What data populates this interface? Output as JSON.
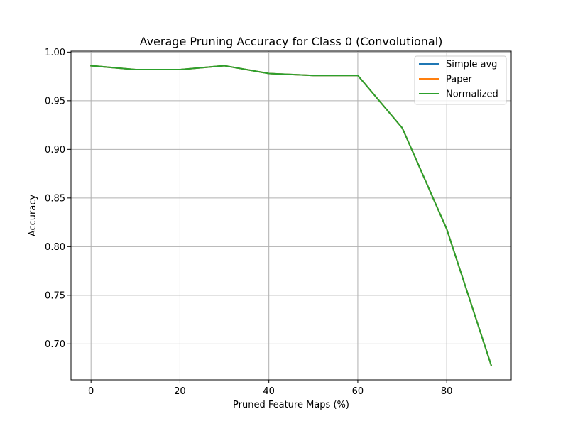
{
  "chart_data": {
    "type": "line",
    "title": "Average Pruning Accuracy for Class 0 (Convolutional)",
    "xlabel": "Pruned Feature Maps (%)",
    "ylabel": "Accuracy",
    "xlim": [
      -4.5,
      94.5
    ],
    "ylim": [
      0.663,
      1.001
    ],
    "xticks": [
      0,
      20,
      40,
      60,
      80
    ],
    "yticks": [
      0.7,
      0.75,
      0.8,
      0.85,
      0.9,
      0.95,
      1.0
    ],
    "xtick_labels": [
      "0",
      "20",
      "40",
      "60",
      "80"
    ],
    "ytick_labels": [
      "0.70",
      "0.75",
      "0.80",
      "0.85",
      "0.90",
      "0.95",
      "1.00"
    ],
    "grid": true,
    "legend_position": "top-right",
    "x": [
      0,
      10,
      20,
      30,
      40,
      50,
      60,
      70,
      80,
      90
    ],
    "series": [
      {
        "name": "Simple avg",
        "color": "#1f77b4",
        "values": [
          0.986,
          0.982,
          0.982,
          0.986,
          0.978,
          0.976,
          0.976,
          0.922,
          0.818,
          0.678
        ]
      },
      {
        "name": "Paper",
        "color": "#ff7f0e",
        "values": [
          0.986,
          0.982,
          0.982,
          0.986,
          0.978,
          0.976,
          0.976,
          0.922,
          0.818,
          0.678
        ]
      },
      {
        "name": "Normalized",
        "color": "#2ca02c",
        "values": [
          0.986,
          0.982,
          0.982,
          0.986,
          0.978,
          0.976,
          0.976,
          0.922,
          0.818,
          0.678
        ]
      }
    ]
  }
}
